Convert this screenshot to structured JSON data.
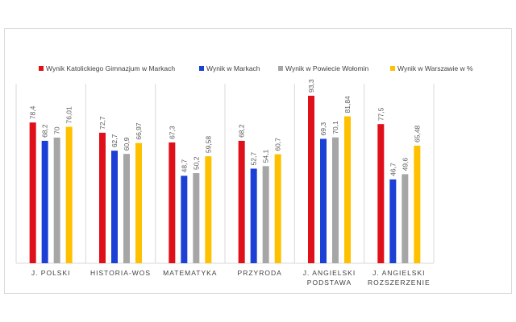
{
  "chart_data": {
    "type": "bar",
    "title": "",
    "xlabel": "",
    "ylabel": "",
    "ylim": [
      0,
      100
    ],
    "grid": false,
    "legend_position": "top",
    "categories": [
      "J. POLSKI",
      "HISTORIA-WOS",
      "MATEMATYKA",
      "PRZYRODA",
      "J. ANGIELSKI PODSTAWA",
      "J. ANGIELSKI ROZSZERZENIE"
    ],
    "series": [
      {
        "name": "Wynik Katolickiego Gimnazjum w Markach",
        "color": "#e0101a",
        "values": [
          78.4,
          72.7,
          67.3,
          68.2,
          93.3,
          77.5
        ],
        "labels": [
          "78,4",
          "72,7",
          "67,3",
          "68,2",
          "93,3",
          "77,5"
        ]
      },
      {
        "name": "Wynik w Markach",
        "color": "#1c3fd6",
        "values": [
          68.2,
          62.7,
          48.7,
          52.7,
          69.3,
          46.7
        ],
        "labels": [
          "68,2",
          "62,7",
          "48,7",
          "52,7",
          "69,3",
          "46,7"
        ]
      },
      {
        "name": "Wynik w Powiecie Wołomin",
        "color": "#a6a6a6",
        "values": [
          70,
          60.9,
          50.2,
          54.1,
          70.1,
          49.6
        ],
        "labels": [
          "70",
          "60,9",
          "50,2",
          "54,1",
          "70,1",
          "49,6"
        ]
      },
      {
        "name": "Wynik w Warszawie w %",
        "color": "#ffc000",
        "values": [
          76.01,
          66.97,
          59.58,
          60.7,
          81.84,
          65.48
        ],
        "labels": [
          "76,01",
          "66,97",
          "59,58",
          "60,7",
          "81,84",
          "65,48"
        ]
      }
    ]
  }
}
